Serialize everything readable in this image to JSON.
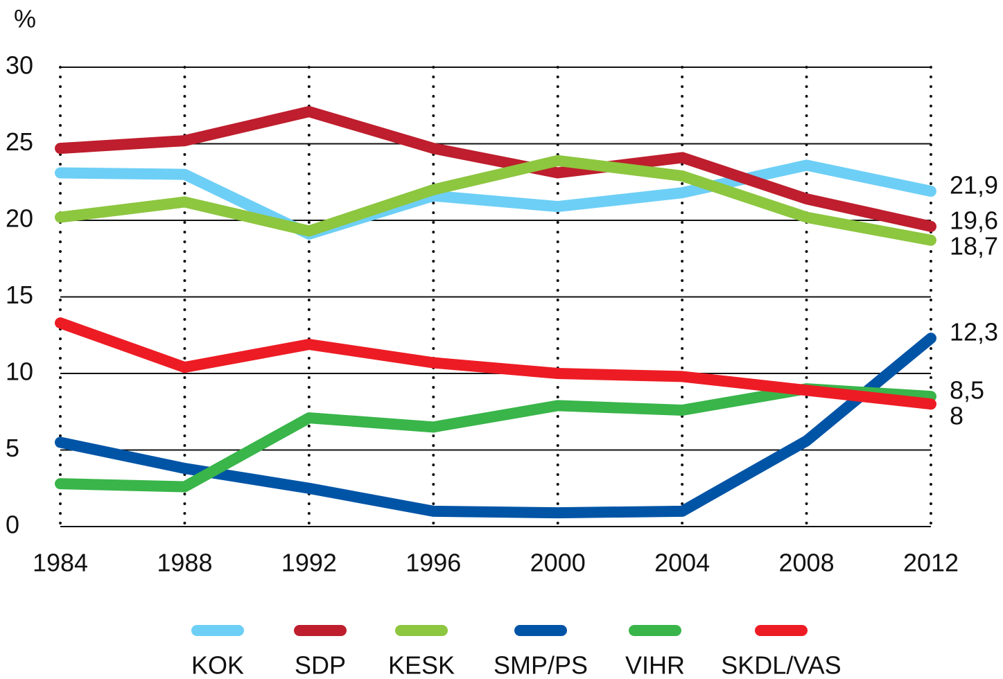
{
  "chart_data": {
    "type": "line",
    "y_label": "%",
    "x": [
      1984,
      1988,
      1992,
      1996,
      2000,
      2004,
      2008,
      2012
    ],
    "xlim": [
      1984,
      2012
    ],
    "xticks": [
      1984,
      1988,
      1992,
      1996,
      2000,
      2004,
      2008,
      2012
    ],
    "ylim": [
      0,
      30
    ],
    "yticks": [
      0,
      5,
      10,
      15,
      20,
      25,
      30
    ],
    "grid": true,
    "series": [
      {
        "name": "KOK",
        "color": "#6dcff6",
        "values": [
          23.1,
          23.0,
          19.1,
          21.6,
          20.9,
          21.8,
          23.6,
          21.9
        ],
        "value_labels": [
          null,
          null,
          null,
          null,
          null,
          null,
          null,
          "21,9"
        ]
      },
      {
        "name": "SDP",
        "color": "#be1e2d",
        "values": [
          24.7,
          25.2,
          27.1,
          24.7,
          23.1,
          24.1,
          21.4,
          19.6
        ],
        "value_labels": [
          null,
          null,
          null,
          null,
          null,
          null,
          null,
          "19,6"
        ]
      },
      {
        "name": "KESK",
        "color": "#8dc63f",
        "values": [
          20.2,
          21.2,
          19.3,
          22.0,
          23.9,
          22.9,
          20.2,
          18.7
        ],
        "value_labels": [
          null,
          null,
          null,
          null,
          null,
          null,
          null,
          "18,7"
        ]
      },
      {
        "name": "SMP/PS",
        "color": "#0054a6",
        "values": [
          5.5,
          3.8,
          2.5,
          1.0,
          0.9,
          1.0,
          5.6,
          12.3
        ],
        "value_labels": [
          null,
          null,
          null,
          null,
          null,
          null,
          null,
          "12,3"
        ]
      },
      {
        "name": "VIHR",
        "color": "#39b54a",
        "values": [
          2.8,
          2.6,
          7.1,
          6.5,
          7.9,
          7.6,
          9.0,
          8.5
        ],
        "value_labels": [
          null,
          null,
          null,
          null,
          null,
          null,
          null,
          "8,5"
        ]
      },
      {
        "name": "SKDL/VAS",
        "color": "#ed1c24",
        "values": [
          13.3,
          10.4,
          11.9,
          10.7,
          10.0,
          9.8,
          8.9,
          8.0
        ],
        "value_labels": [
          null,
          null,
          null,
          null,
          null,
          null,
          null,
          "8"
        ]
      }
    ]
  }
}
